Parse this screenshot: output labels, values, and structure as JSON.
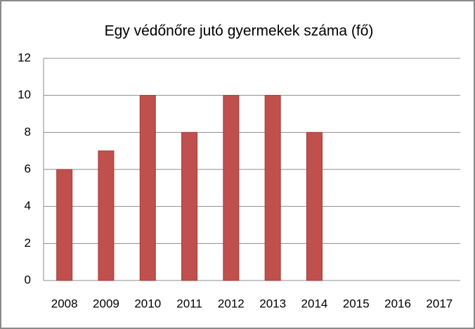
{
  "chart_data": {
    "type": "bar",
    "title": "Egy védőnőre jutó gyermekek száma (fő)",
    "categories": [
      "2008",
      "2009",
      "2010",
      "2011",
      "2012",
      "2013",
      "2014",
      "2015",
      "2016",
      "2017"
    ],
    "values": [
      6,
      7,
      10,
      8,
      10,
      10,
      8,
      null,
      null,
      null
    ],
    "color": "#c0504d",
    "ylim": [
      0,
      12
    ],
    "yticks": [
      0,
      2,
      4,
      6,
      8,
      10,
      12
    ],
    "grid": true
  }
}
